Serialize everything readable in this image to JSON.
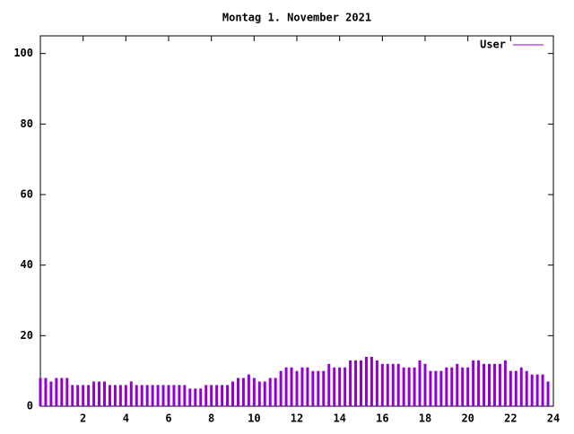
{
  "chart_data": {
    "type": "impulse",
    "title": "Montag 1. November 2021",
    "series": [
      {
        "name": "User",
        "color": "#9400d3",
        "x": [
          0,
          0.25,
          0.5,
          0.75,
          1,
          1.25,
          1.5,
          1.75,
          2,
          2.25,
          2.5,
          2.75,
          3,
          3.25,
          3.5,
          3.75,
          4,
          4.25,
          4.5,
          4.75,
          5,
          5.25,
          5.5,
          5.75,
          6,
          6.25,
          6.5,
          6.75,
          7,
          7.25,
          7.5,
          7.75,
          8,
          8.25,
          8.5,
          8.75,
          9,
          9.25,
          9.5,
          9.75,
          10,
          10.25,
          10.5,
          10.75,
          11,
          11.25,
          11.5,
          11.75,
          12,
          12.25,
          12.5,
          12.75,
          13,
          13.25,
          13.5,
          13.75,
          14,
          14.25,
          14.5,
          14.75,
          15,
          15.25,
          15.5,
          15.75,
          16,
          16.25,
          16.5,
          16.75,
          17,
          17.25,
          17.5,
          17.75,
          18,
          18.25,
          18.5,
          18.75,
          19,
          19.25,
          19.5,
          19.75,
          20,
          20.25,
          20.5,
          20.75,
          21,
          21.25,
          21.5,
          21.75,
          22,
          22.25,
          22.5,
          22.75,
          23,
          23.25,
          23.5,
          23.75
        ],
        "values": [
          8,
          8,
          7,
          8,
          8,
          8,
          6,
          6,
          6,
          6,
          7,
          7,
          7,
          6,
          6,
          6,
          6,
          7,
          6,
          6,
          6,
          6,
          6,
          6,
          6,
          6,
          6,
          6,
          5,
          5,
          5,
          6,
          6,
          6,
          6,
          6,
          7,
          8,
          8,
          9,
          8,
          7,
          7,
          8,
          8,
          10,
          11,
          11,
          10,
          11,
          11,
          10,
          10,
          10,
          12,
          11,
          11,
          11,
          13,
          13,
          13,
          14,
          14,
          13,
          12,
          12,
          12,
          12,
          11,
          11,
          11,
          13,
          12,
          10,
          10,
          10,
          11,
          11,
          12,
          11,
          11,
          13,
          13,
          12,
          12,
          12,
          12,
          13,
          10,
          10,
          11,
          10,
          9,
          9,
          9,
          7
        ]
      }
    ],
    "xlim": [
      0,
      24
    ],
    "xticks": [
      2,
      4,
      6,
      8,
      10,
      12,
      14,
      16,
      18,
      20,
      22,
      24
    ],
    "ylim": [
      0,
      105
    ],
    "yticks": [
      0,
      20,
      40,
      60,
      80,
      100
    ],
    "legend": "top-right"
  }
}
